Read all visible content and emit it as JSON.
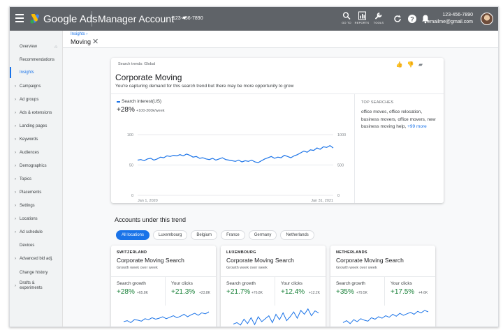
{
  "topbar": {
    "brand": "Google Ads",
    "account_name": "Manager Account",
    "account_id": "123-456-7890",
    "tools": [
      {
        "label": "GO TO",
        "icon": "search-icon"
      },
      {
        "label": "REPORTS",
        "icon": "reports-icon"
      },
      {
        "label": "TOOLS",
        "icon": "wrench-icon"
      }
    ],
    "user_phone": "123-456-7890",
    "user_email": "emailme@gmail.com"
  },
  "sidebar": {
    "items": [
      {
        "label": "Overview"
      },
      {
        "label": "Recommendations"
      },
      {
        "label": "Insights"
      },
      {
        "label": "Campaigns"
      },
      {
        "label": "Ad groups"
      },
      {
        "label": "Ads & extensions"
      },
      {
        "label": "Landing pages"
      },
      {
        "label": "Keywords"
      },
      {
        "label": "Audiences"
      },
      {
        "label": "Demographics"
      },
      {
        "label": "Topics"
      },
      {
        "label": "Placements"
      },
      {
        "label": "Settings"
      },
      {
        "label": "Locations"
      },
      {
        "label": "Ad schedule"
      },
      {
        "label": "Devices"
      },
      {
        "label": "Advanced bid adj."
      },
      {
        "label": "Change history"
      },
      {
        "label": "Drafts &",
        "label2": "experiments"
      }
    ]
  },
  "breadcrumb": "Insights ›",
  "page_title": "Moving",
  "trend_card": {
    "label": "Search trends: Global",
    "title": "Corporate Moving",
    "subtitle": "You're capturing demand for this search trend but there may be more opportunity to grow",
    "legend": "Search interest(US)",
    "growth": "+28%",
    "growth_detail": "+100-200k/week",
    "top_searches_title": "TOP SEARCHES",
    "top_searches": "office moves, office relocation, business movers, office movers, new business moving help,",
    "more_link": "+99 more"
  },
  "chart_data": {
    "type": "line",
    "series": [
      {
        "name": "Search interest(US)",
        "values": [
          58,
          59,
          57,
          60,
          61,
          58,
          60,
          63,
          62,
          65,
          64,
          66,
          65,
          67,
          65,
          68,
          66,
          63,
          64,
          61,
          62,
          60,
          59,
          61,
          58,
          60,
          62,
          59,
          58,
          57,
          56,
          58,
          55,
          57,
          56,
          58,
          55,
          54,
          57,
          60,
          62,
          64,
          61,
          63,
          62,
          66,
          64,
          62,
          65,
          67,
          70,
          73,
          71,
          75,
          74,
          78,
          76,
          80,
          79,
          82,
          78
        ]
      }
    ],
    "x_tick_labels": [
      "Jan 1, 2020",
      "Jan 31, 2021"
    ],
    "y_ticks_left": [
      "100",
      "50",
      "0"
    ],
    "y_ticks_right": [
      "1000",
      "500",
      "0"
    ],
    "ylim": [
      0,
      100
    ],
    "grid": true
  },
  "accounts": {
    "title": "Accounts under this trend",
    "filters": [
      "All locations",
      "Luxembourg",
      "Belgium",
      "France",
      "Germany",
      "Netherlands"
    ],
    "cards": [
      {
        "country": "SWITZERLAND",
        "name": "Corporate Moving Search",
        "meta": "Growth week over week",
        "m1_label": "Search growth",
        "m1_value": "+28%",
        "m1_delta": "+65.8K",
        "m2_label": "Your clicks",
        "m2_value": "+21.3%",
        "m2_delta": "+23.8K",
        "spark": [
          40,
          42,
          38,
          44,
          43,
          41,
          46,
          44,
          48,
          45,
          47,
          50,
          46,
          49,
          52,
          48,
          51,
          55,
          50,
          54,
          57,
          53,
          58,
          56,
          60
        ]
      },
      {
        "country": "LUXEMBOURG",
        "name": "Corporate Moving Search",
        "meta": "Growth week over week",
        "m1_label": "Search growth",
        "m1_value": "+21.7%",
        "m1_delta": "+76.8K",
        "m2_label": "Your clicks",
        "m2_value": "+12.4%",
        "m2_delta": "+12.2K",
        "spark": [
          35,
          38,
          33,
          45,
          36,
          48,
          34,
          50,
          40,
          46,
          52,
          38,
          55,
          44,
          58,
          42,
          50,
          60,
          47,
          63,
          55,
          66,
          52,
          62,
          58
        ]
      },
      {
        "country": "NETHERLANDS",
        "name": "Corporate Moving Search",
        "meta": "Growth week over week",
        "m1_label": "Search growth",
        "m1_value": "+35%",
        "m1_delta": "+79.5K",
        "m2_label": "Your clicks",
        "m2_value": "+17.5%",
        "m2_delta": "+4.6K",
        "spark": [
          38,
          42,
          36,
          44,
          40,
          46,
          43,
          41,
          48,
          45,
          50,
          47,
          52,
          49,
          55,
          51,
          57,
          53,
          56,
          59,
          55,
          61,
          58,
          63,
          60
        ]
      }
    ]
  }
}
